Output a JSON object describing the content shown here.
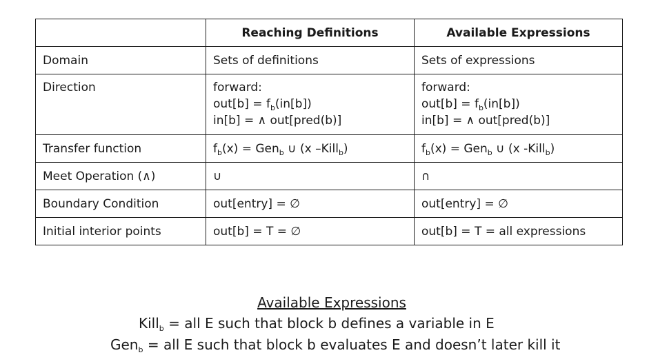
{
  "table": {
    "headers": [
      "",
      "Reaching Definitions",
      "Available Expressions"
    ],
    "rows": [
      {
        "label": "Domain",
        "rd": "Sets of definitions",
        "ae": "Sets of expressions"
      },
      {
        "label": "Direction",
        "rd": {
          "l1": "forward:",
          "l2a": "out[b] = f",
          "l2sub": "b",
          "l2b": "(in[b])",
          "l3": "in[b] = ∧ out[pred(b)]"
        },
        "ae": {
          "l1": "forward:",
          "l2a": "out[b] = f",
          "l2sub": "b",
          "l2b": "(in[b])",
          "l3": "in[b] = ∧ out[pred(b)]"
        }
      },
      {
        "label": "Transfer function",
        "rd": {
          "a": "f",
          "sub1": "b",
          "b": "(x) = Gen",
          "sub2": "b",
          "c": " ∪ (x –Kill",
          "sub3": "b",
          "d": ")"
        },
        "ae": {
          "a": "f",
          "sub1": "b",
          "b": "(x) = Gen",
          "sub2": "b",
          "c": " ∪ (x -Kill",
          "sub3": "b",
          "d": ")"
        }
      },
      {
        "label": "Meet Operation (∧)",
        "rd": "∪",
        "ae": "∩"
      },
      {
        "label": "Boundary Condition",
        "rd": "out[entry] = ∅",
        "ae": "out[entry] = ∅"
      },
      {
        "label": "Initial interior points",
        "rd": "out[b] = T = ∅",
        "ae": "out[b] = T = all expressions"
      }
    ]
  },
  "footer": {
    "title": "Available Expressions",
    "kill": {
      "a": "Kill",
      "sub": "b",
      "b": " = all E such that block b defines a variable in E"
    },
    "gen": {
      "a": "Gen",
      "sub": "b",
      "b": " = all E such that block b evaluates E and doesn’t later kill it"
    }
  }
}
